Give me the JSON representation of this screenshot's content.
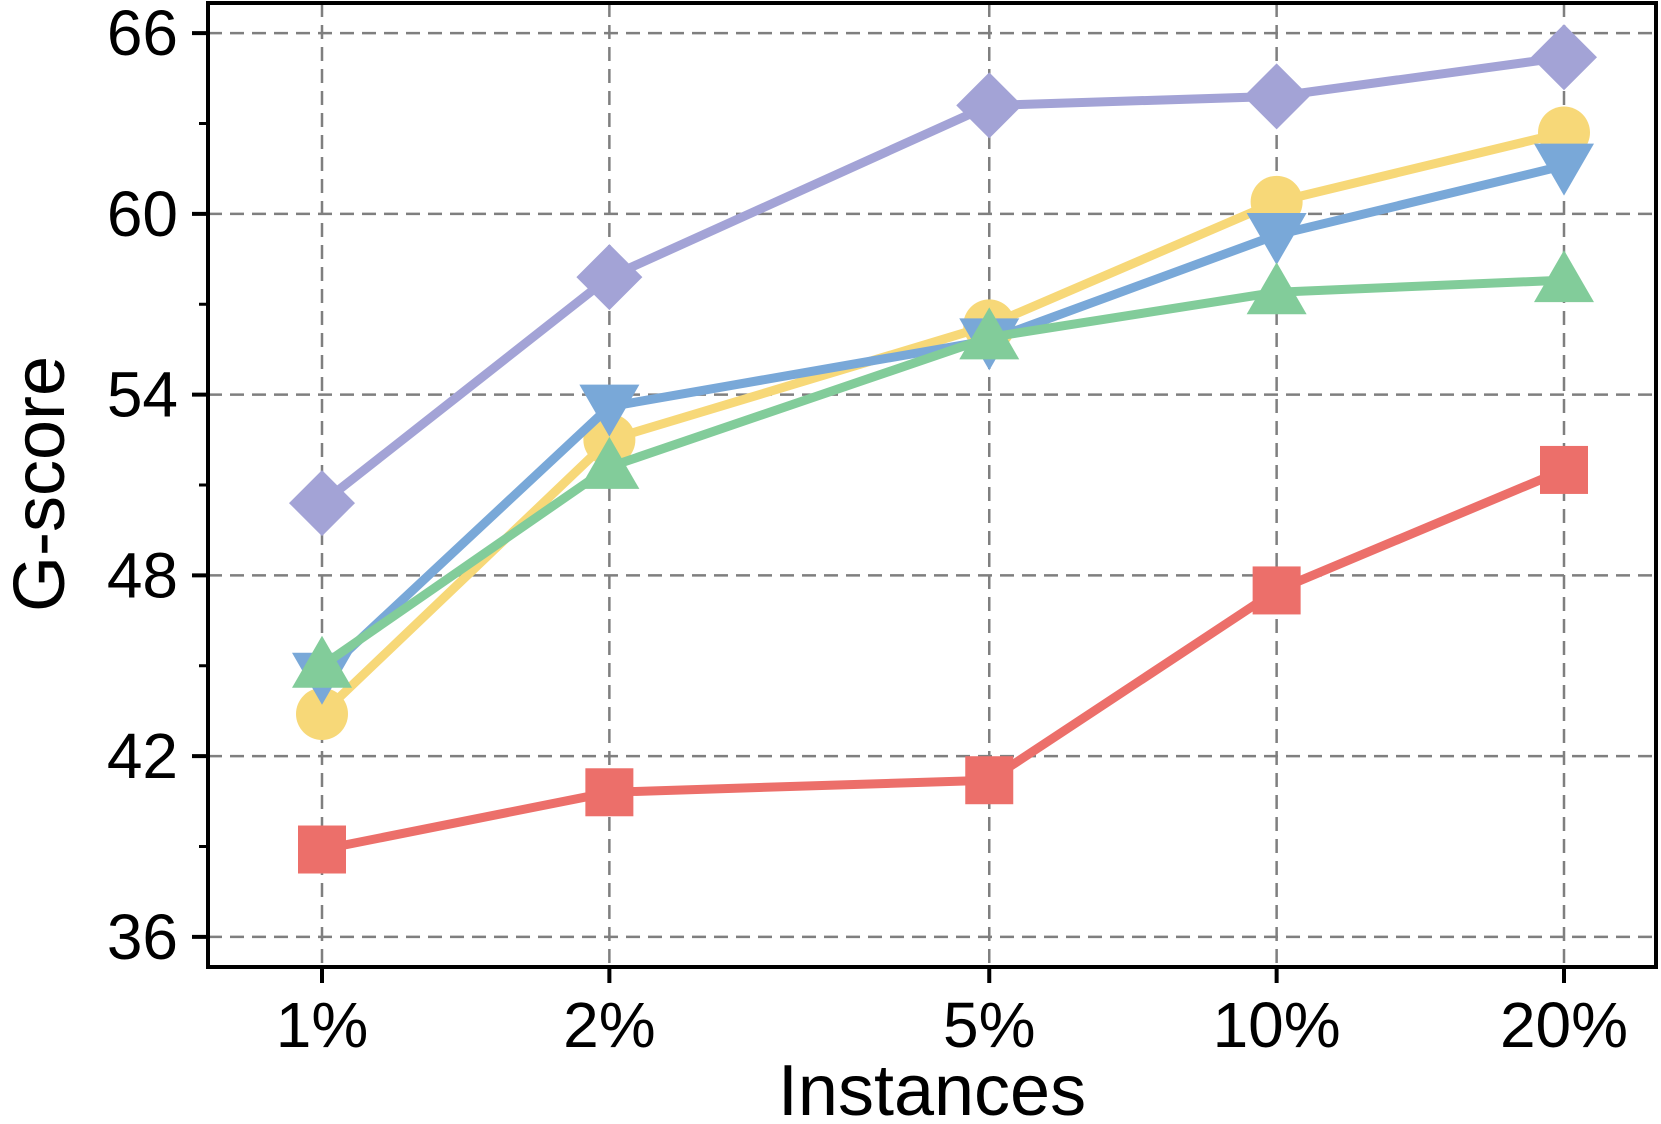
{
  "chart_data": {
    "type": "line",
    "title": "",
    "xlabel": "Instances",
    "ylabel": "G-score",
    "x_categories": [
      "1%",
      "2%",
      "5%",
      "10%",
      "20%"
    ],
    "x_scale": "log",
    "x_values": [
      1,
      2,
      5,
      10,
      20
    ],
    "ylim": [
      35,
      67
    ],
    "y_ticks": [
      36,
      42,
      48,
      54,
      60,
      66
    ],
    "grid": true,
    "legend": "none",
    "series": [
      {
        "color": "#a3a3d6",
        "marker": "diamond",
        "values": [
          50.4,
          57.9,
          63.6,
          63.9,
          65.2
        ]
      },
      {
        "color": "#f7d878",
        "marker": "circle",
        "values": [
          43.4,
          52.5,
          56.3,
          60.4,
          62.7
        ]
      },
      {
        "color": "#79a8d8",
        "marker": "triangle-down",
        "values": [
          44.7,
          53.6,
          55.8,
          59.3,
          61.6
        ]
      },
      {
        "color": "#82cc9a",
        "marker": "triangle-up",
        "values": [
          45.0,
          51.6,
          55.9,
          57.4,
          57.8
        ]
      },
      {
        "color": "#ec6f6a",
        "marker": "square",
        "values": [
          38.9,
          40.8,
          41.2,
          47.5,
          51.5
        ]
      }
    ]
  }
}
